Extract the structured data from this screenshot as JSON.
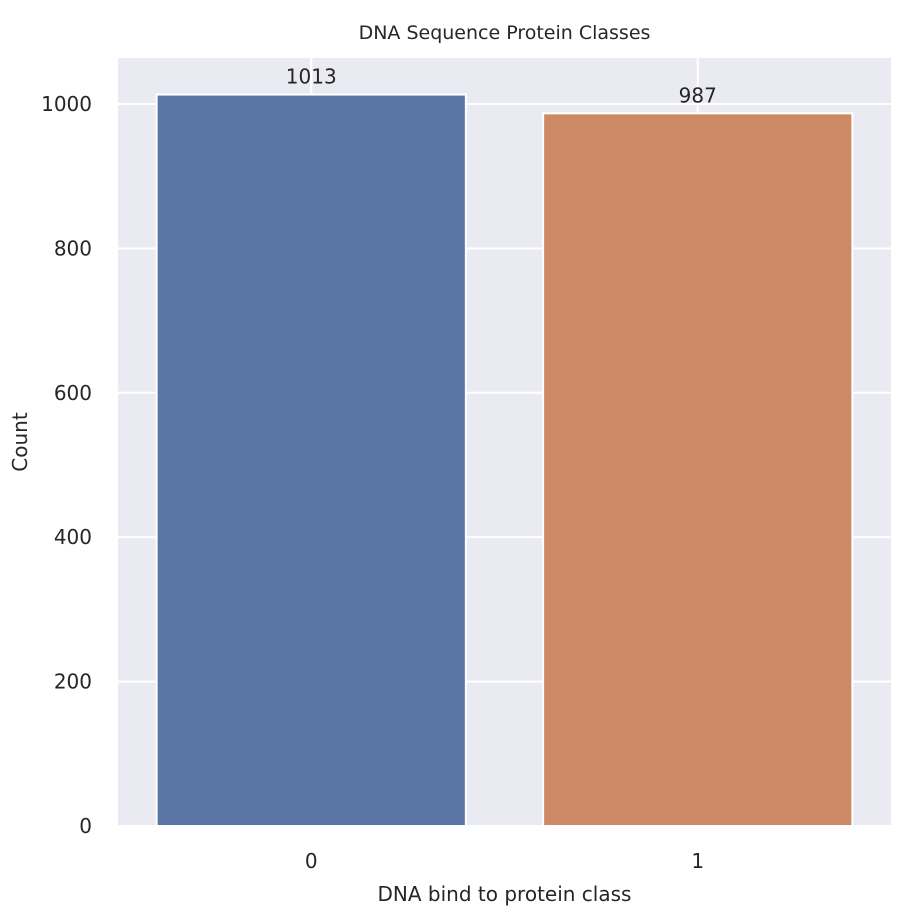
{
  "chart_data": {
    "type": "bar",
    "title": "DNA Sequence Protein Classes",
    "xlabel": "DNA bind to protein class",
    "ylabel": "Count",
    "categories": [
      "0",
      "1"
    ],
    "values": [
      1013,
      987
    ],
    "data_labels": [
      "1013",
      "987"
    ],
    "colors": [
      "#5975a4",
      "#cc8963"
    ],
    "ylim": [
      0,
      1063.65
    ],
    "yticks": [
      0,
      200,
      400,
      600,
      800,
      1000
    ],
    "ytick_labels": [
      "0",
      "200",
      "400",
      "600",
      "800",
      "1000"
    ],
    "grid": true,
    "background_color": "#eaeaf2",
    "grid_color": "#ffffff"
  }
}
